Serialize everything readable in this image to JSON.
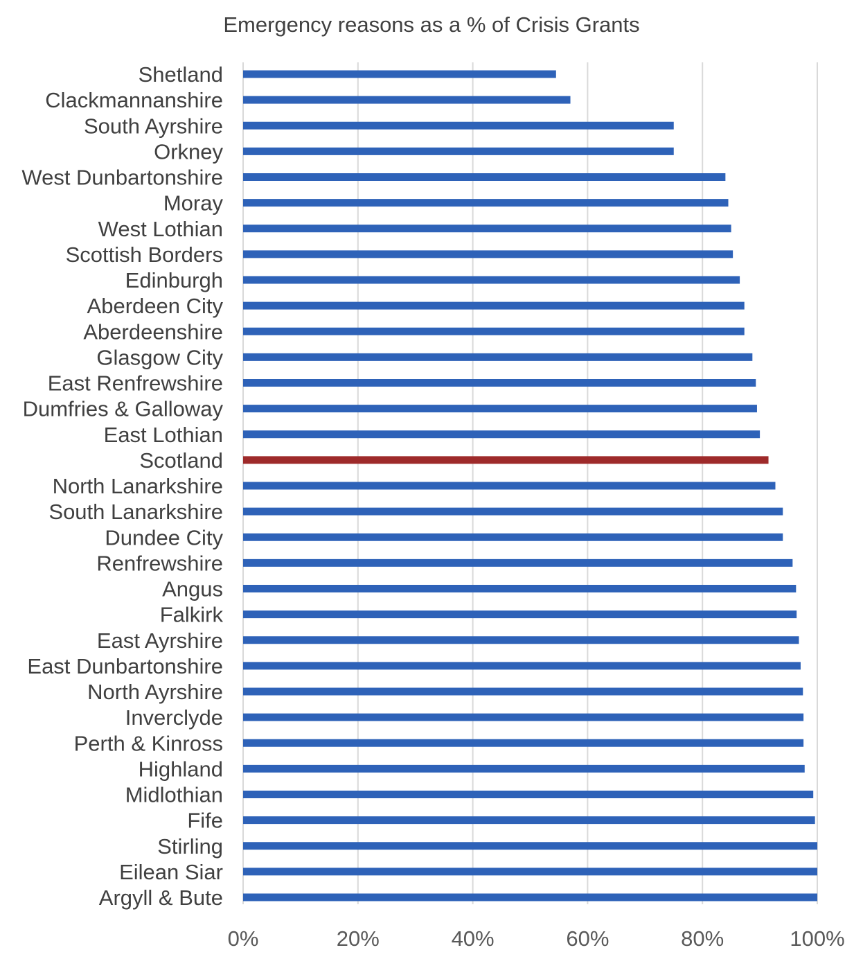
{
  "chart_data": {
    "type": "bar",
    "orientation": "horizontal",
    "title": "Emergency reasons as a % of Crisis Grants",
    "xlabel": "",
    "ylabel": "",
    "xlim": [
      0,
      100
    ],
    "x_ticks": [
      0,
      20,
      40,
      60,
      80,
      100
    ],
    "x_tick_labels": [
      "0%",
      "20%",
      "40%",
      "60%",
      "80%",
      "100%"
    ],
    "grid": "vertical",
    "legend": "none",
    "colors": {
      "bar": "#2e62b8",
      "highlight": "#9e2a2a",
      "text": "#404040",
      "grid": "#d9d9d9"
    },
    "highlight_category": "Scotland",
    "categories": [
      "Shetland",
      "Clackmannanshire",
      "South Ayrshire",
      "Orkney",
      "West Dunbartonshire",
      "Moray",
      "West Lothian",
      "Scottish Borders",
      "Edinburgh",
      "Aberdeen City",
      "Aberdeenshire",
      "Glasgow City",
      "East Renfrewshire",
      "Dumfries & Galloway",
      "East Lothian",
      "Scotland",
      "North Lanarkshire",
      "South Lanarkshire",
      "Dundee City",
      "Renfrewshire",
      "Angus",
      "Falkirk",
      "East Ayrshire",
      "East Dunbartonshire",
      "North Ayrshire",
      "Inverclyde",
      "Perth & Kinross",
      "Highland",
      "Midlothian",
      "Fife",
      "Stirling",
      "Eilean Siar",
      "Argyll & Bute"
    ],
    "values": [
      54.5,
      57,
      75,
      75,
      84,
      84.5,
      85,
      85.3,
      86.5,
      87.3,
      87.3,
      88.7,
      89.3,
      89.5,
      90,
      91.5,
      92.7,
      94,
      94,
      95.7,
      96.3,
      96.4,
      96.8,
      97.1,
      97.5,
      97.6,
      97.6,
      97.8,
      99.3,
      99.6,
      100,
      100,
      100
    ]
  }
}
